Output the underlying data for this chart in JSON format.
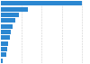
{
  "values": [
    797.0,
    270.0,
    178.0,
    140.0,
    118.0,
    97.0,
    85.0,
    75.0,
    65.0,
    55.0,
    22.0
  ],
  "bar_color": "#2b87d1",
  "background_color": "#ffffff",
  "xlim": [
    0,
    870
  ],
  "bar_height": 0.78,
  "grid_values": [
    200,
    400,
    600,
    800
  ],
  "grid_color": "#cccccc",
  "grid_lw": 0.4
}
